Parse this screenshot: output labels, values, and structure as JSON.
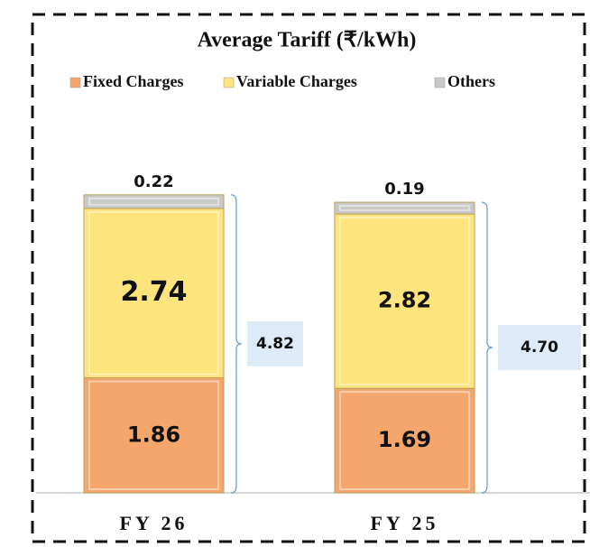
{
  "chart_data": {
    "type": "stacked-bar",
    "title": "Average Tariff (₹/kWh)",
    "categories": [
      "FY 26",
      "FY 25"
    ],
    "series": [
      {
        "name": "Fixed Charges",
        "color": "#f4a66c",
        "values": [
          1.86,
          1.69
        ]
      },
      {
        "name": "Variable Charges",
        "color": "#fde47c",
        "values": [
          2.74,
          2.82
        ]
      },
      {
        "name": "Others",
        "color": "#c9c9c9",
        "values": [
          0.22,
          0.19
        ]
      }
    ],
    "totals": {
      "values": [
        4.82,
        4.7
      ],
      "value_labels": [
        "4.82",
        "4.70"
      ]
    }
  }
}
